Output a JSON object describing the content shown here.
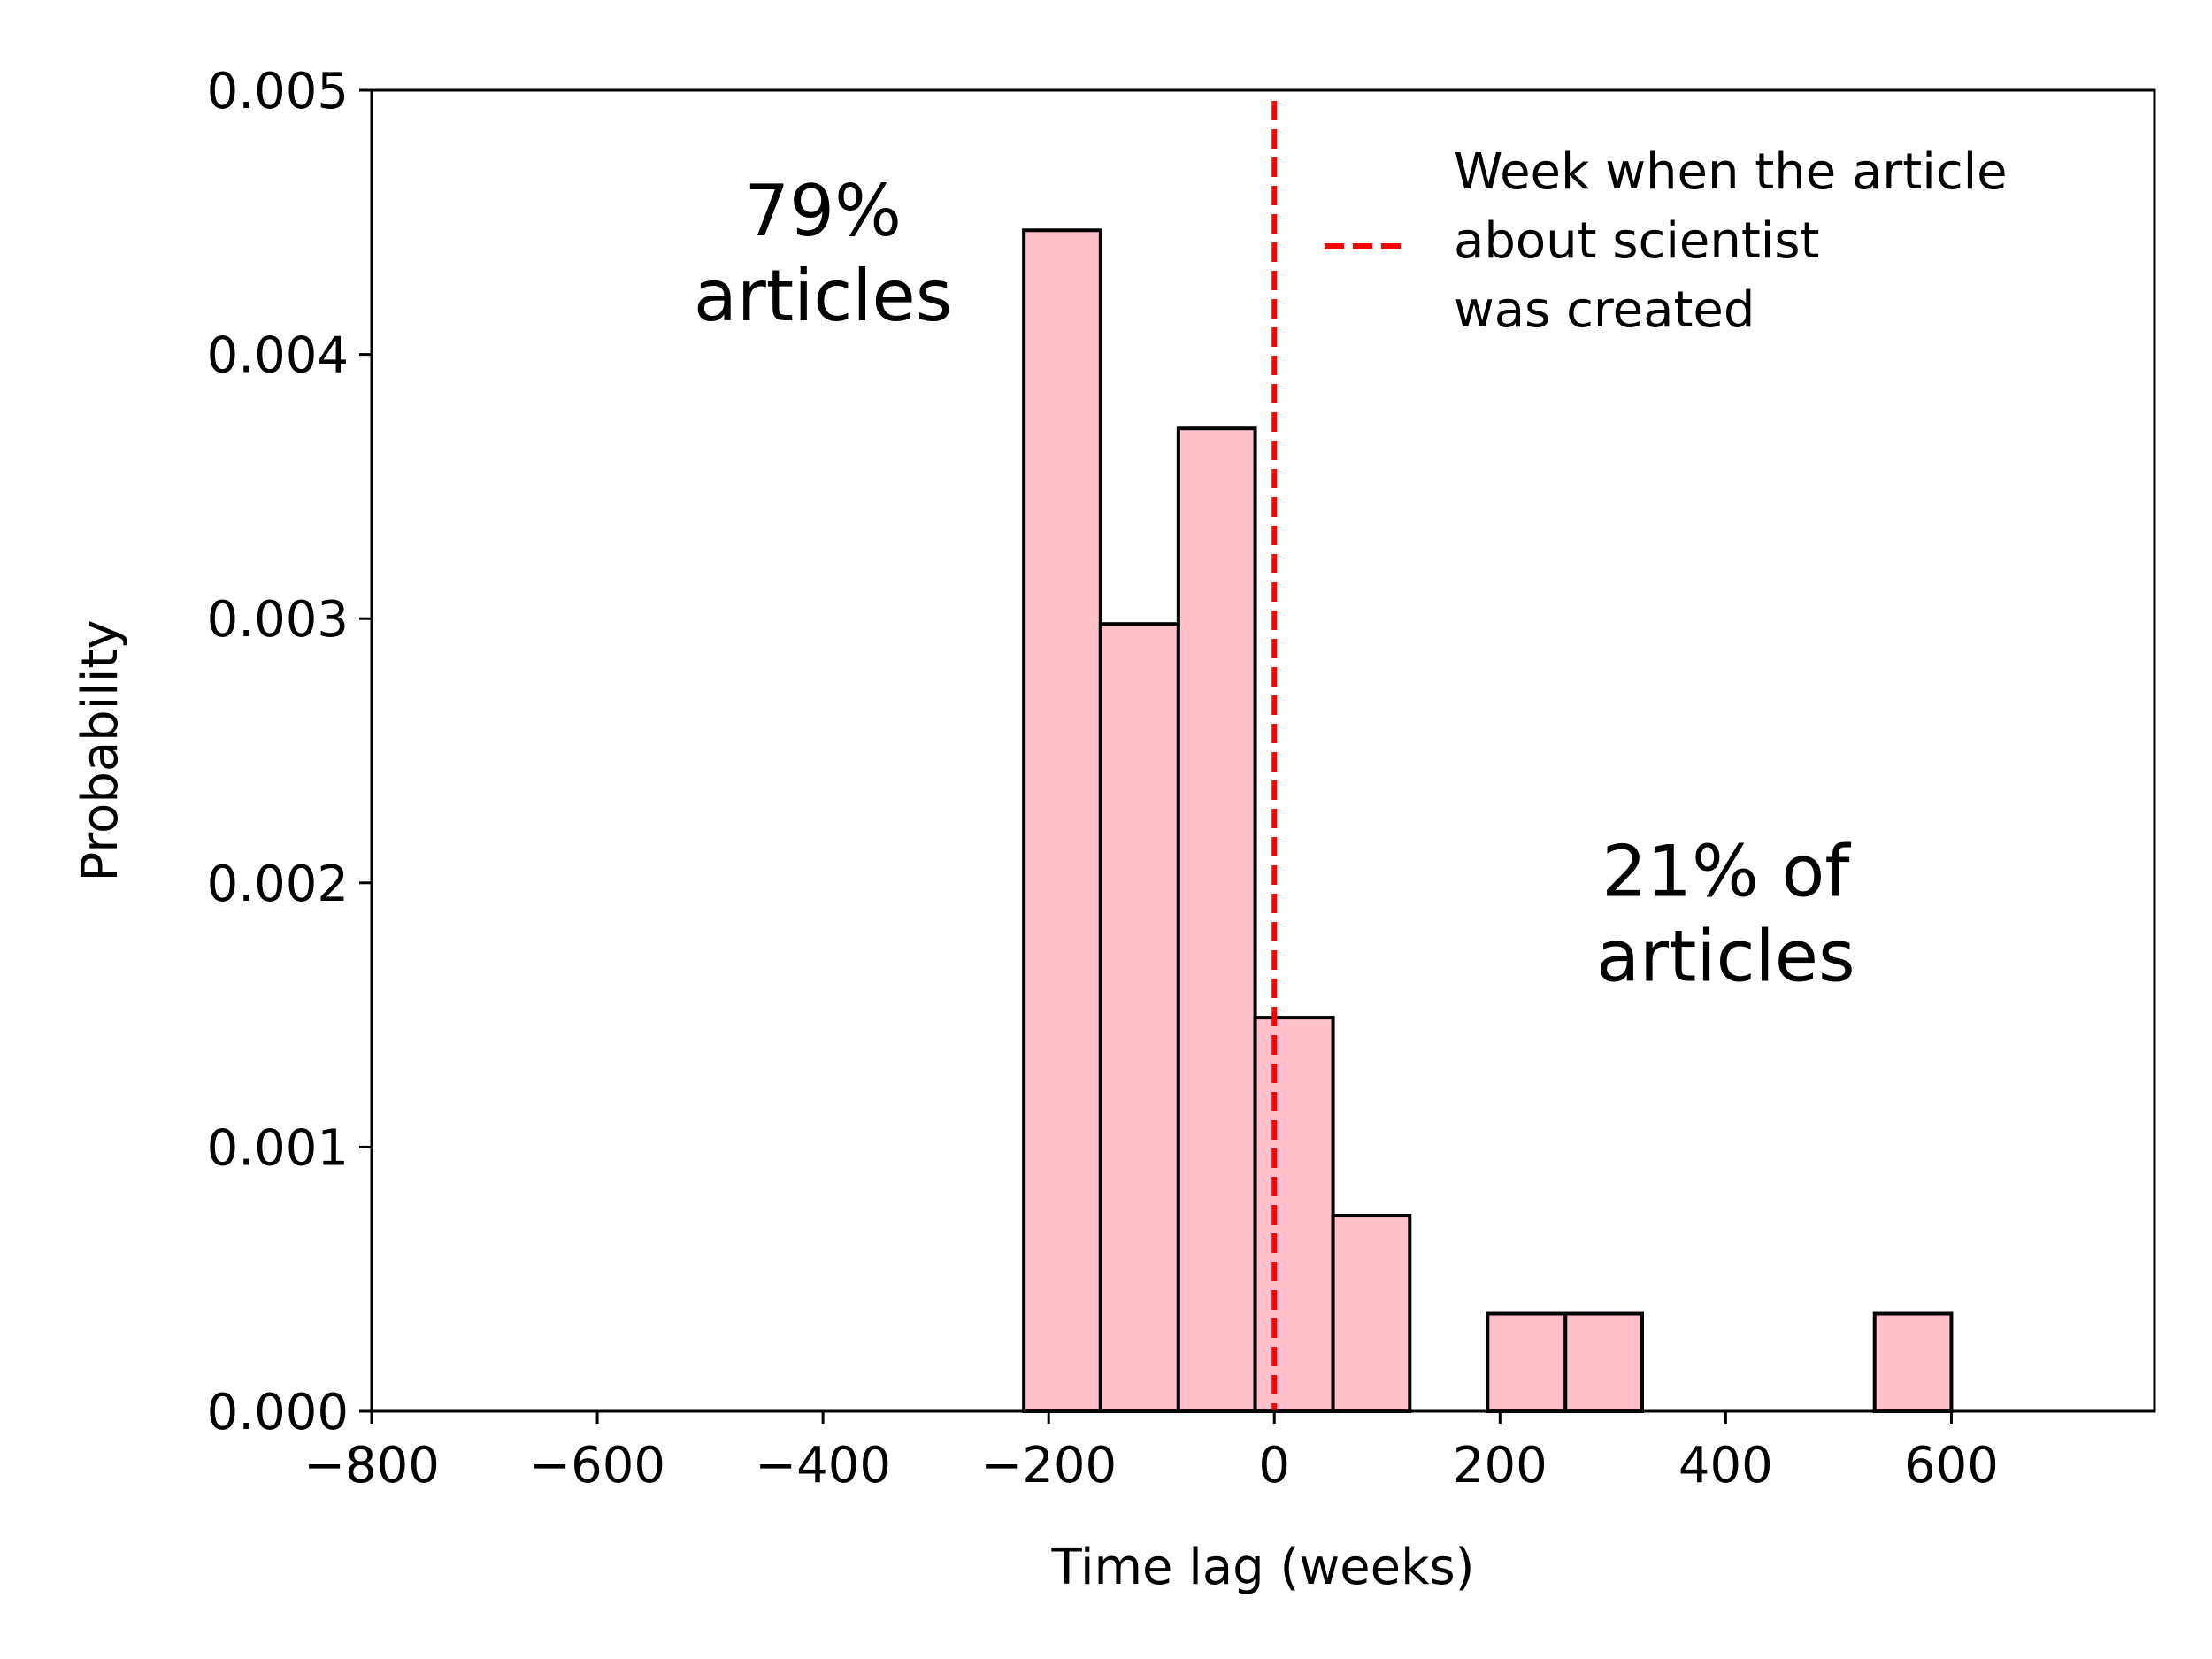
{
  "chart_data": {
    "type": "bar",
    "title": "",
    "xlabel": "Time lag (weeks)",
    "ylabel": "Probability",
    "xlim": [
      -800,
      780
    ],
    "ylim": [
      0,
      0.005
    ],
    "x_ticks": [
      -800,
      -600,
      -400,
      -200,
      0,
      200,
      400,
      600
    ],
    "x_tick_labels": [
      "−800",
      "−600",
      "−400",
      "−200",
      "0",
      "200",
      "400",
      "600"
    ],
    "y_ticks": [
      0,
      0.001,
      0.002,
      0.003,
      0.004,
      0.005
    ],
    "y_tick_labels": [
      "0.000",
      "0.001",
      "0.002",
      "0.003",
      "0.004",
      "0.005"
    ],
    "bar_color": "#ffc0cb",
    "bar_edge_color": "#000000",
    "bins": [
      {
        "x0": -222,
        "x1": -154,
        "value": 0.00447
      },
      {
        "x0": -154,
        "x1": -85,
        "value": 0.00298
      },
      {
        "x0": -85,
        "x1": -17,
        "value": 0.00372
      },
      {
        "x0": -17,
        "x1": 52,
        "value": 0.00149
      },
      {
        "x0": 52,
        "x1": 120,
        "value": 0.00074
      },
      {
        "x0": 120,
        "x1": 189,
        "value": 0.0
      },
      {
        "x0": 189,
        "x1": 258,
        "value": 0.00037
      },
      {
        "x0": 258,
        "x1": 326,
        "value": 0.00037
      },
      {
        "x0": 326,
        "x1": 395,
        "value": 0.0
      },
      {
        "x0": 395,
        "x1": 463,
        "value": 0.0
      },
      {
        "x0": 463,
        "x1": 532,
        "value": 0.0
      },
      {
        "x0": 532,
        "x1": 600,
        "value": 0.00037
      }
    ],
    "reference_line": {
      "x": 0,
      "color": "#ff0000",
      "style": "dashed"
    },
    "legend": {
      "placement": "top-right",
      "entries": [
        {
          "label_lines": [
            "Week when the article",
            "about scientist",
            "was created"
          ],
          "color": "#ff0000",
          "style": "dashed"
        }
      ]
    },
    "annotations": [
      {
        "lines": [
          "79%",
          "articles"
        ],
        "x": -400,
        "y": 0.00445
      },
      {
        "lines": [
          "21% of",
          "articles"
        ],
        "x": 400,
        "y": 0.00195
      }
    ]
  }
}
